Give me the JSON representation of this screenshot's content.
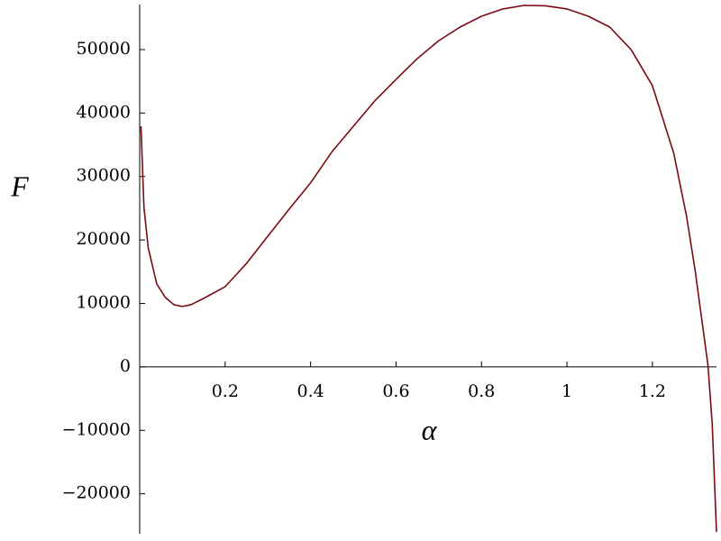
{
  "chart_data": {
    "type": "line",
    "x_label": "α",
    "y_label": "F",
    "xlim": [
      0,
      1.35
    ],
    "ylim": [
      -26300,
      57100
    ],
    "xticks": [
      0.2,
      0.4,
      0.6,
      0.8,
      1,
      1.2
    ],
    "yticks": [
      {
        "value": -20000,
        "label": "−20000"
      },
      {
        "value": -10000,
        "label": "−10000"
      },
      0,
      10000,
      20000,
      30000,
      40000,
      50000
    ],
    "x": [
      0.003,
      0.01,
      0.02,
      0.04,
      0.06,
      0.08,
      0.1,
      0.12,
      0.15,
      0.2,
      0.25,
      0.3,
      0.35,
      0.4,
      0.45,
      0.5,
      0.55,
      0.6,
      0.65,
      0.7,
      0.75,
      0.8,
      0.85,
      0.9,
      0.95,
      1.0,
      1.05,
      1.1,
      1.15,
      1.2,
      1.25,
      1.28,
      1.3,
      1.32,
      1.33,
      1.34,
      1.35
    ],
    "series": [
      {
        "color": "#7a0a14",
        "values": [
          37900,
          25100,
          18750,
          13070,
          10940,
          9800,
          9520,
          9800,
          10800,
          12640,
          16300,
          20600,
          24860,
          29000,
          33900,
          37900,
          41900,
          45300,
          48600,
          51400,
          53550,
          55250,
          56400,
          56960,
          56900,
          56400,
          55250,
          53550,
          50000,
          44320,
          33660,
          23700,
          15200,
          5250,
          280,
          -8950,
          -26000
        ]
      }
    ]
  }
}
